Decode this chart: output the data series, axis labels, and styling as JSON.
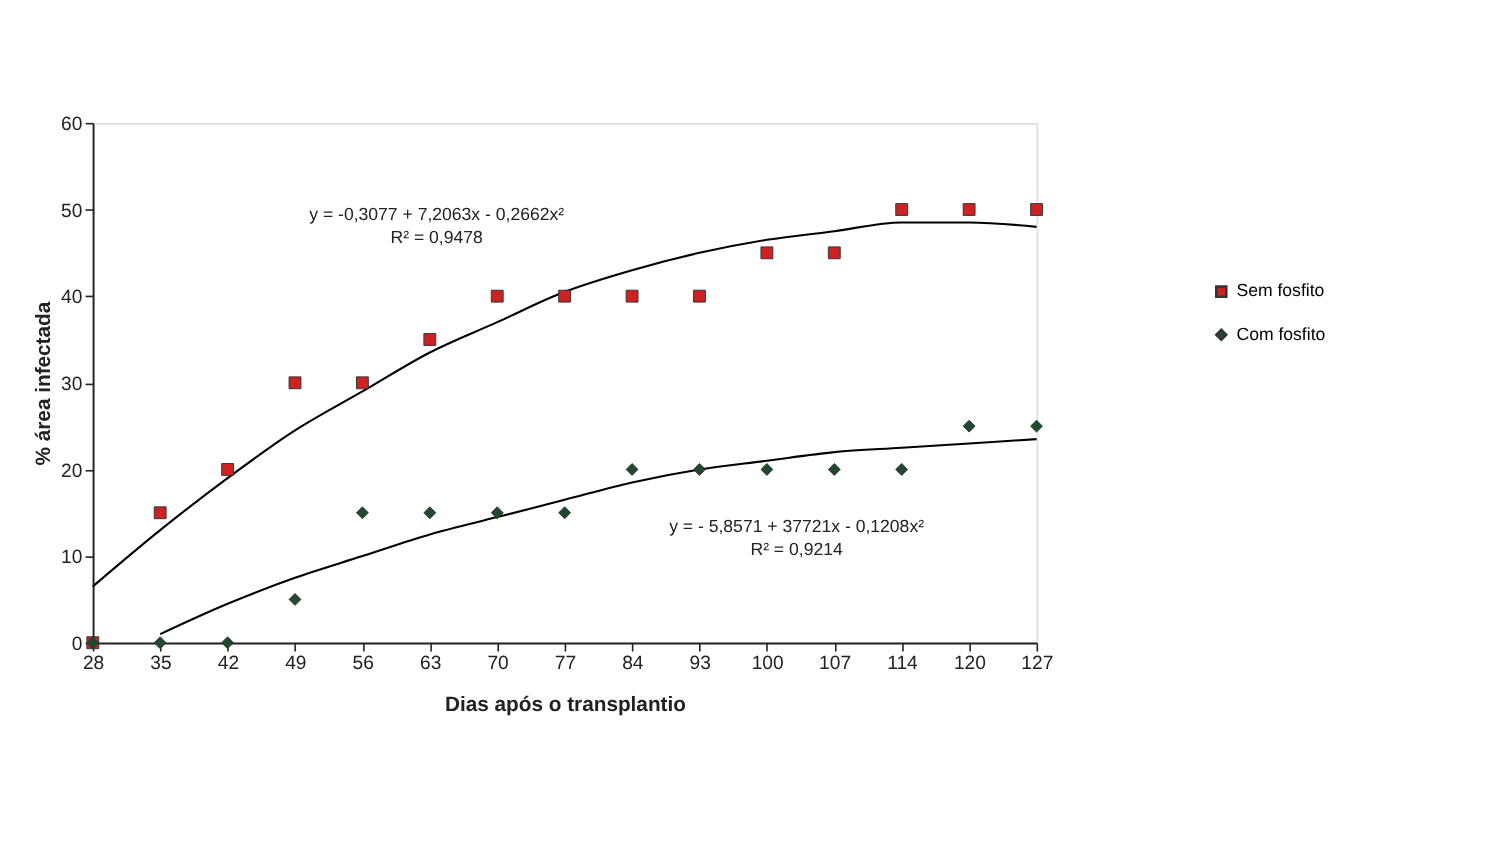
{
  "chart_data": {
    "type": "scatter",
    "xlabel": "Dias após o transplantio",
    "ylabel": "% área infectada",
    "categories": [
      "28",
      "35",
      "42",
      "49",
      "56",
      "63",
      "70",
      "77",
      "84",
      "93",
      "100",
      "107",
      "114",
      "120",
      "127"
    ],
    "series": [
      {
        "name": "Sem fosfito",
        "color": "#cc2222",
        "marker": "square",
        "values": [
          0,
          15,
          20,
          30,
          30,
          35,
          40,
          40,
          40,
          40,
          45,
          45,
          50,
          50,
          50
        ]
      },
      {
        "name": "Com fosfito",
        "color": "#1f4a2e",
        "marker": "diamond",
        "values": [
          0,
          0,
          0,
          5,
          15,
          15,
          15,
          15,
          20,
          20,
          20,
          20,
          20,
          25,
          25
        ]
      },
      {
        "type": "line",
        "color": "#000000",
        "values": [
          6.5,
          13,
          19,
          24.5,
          29,
          33.5,
          37,
          40.5,
          43,
          45,
          46.5,
          47.5,
          48.5,
          48.5,
          48
        ]
      },
      {
        "type": "line",
        "color": "#000000",
        "values": [
          null,
          1,
          4.5,
          7.5,
          10,
          12.5,
          14.5,
          16.5,
          18.5,
          20,
          21,
          22,
          22.5,
          23,
          23.5
        ]
      }
    ],
    "ylim": [
      0,
      60
    ],
    "yticks": [
      0,
      10,
      20,
      30,
      40,
      50,
      60
    ],
    "grid": false,
    "legend": "right",
    "annotations": [
      "y = -0,3077 + 7,2063x - 0,2662x²",
      "R² = 0,9478",
      "y = - 5,8571 + 37721x  - 0,1208x²",
      "R² = 0,9214"
    ]
  }
}
